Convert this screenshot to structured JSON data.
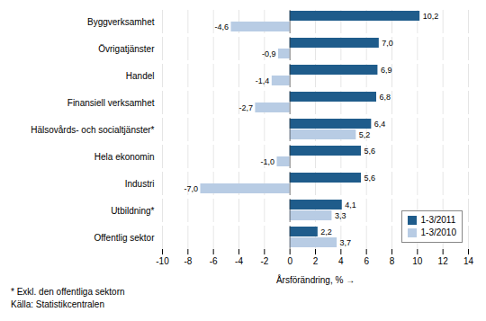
{
  "chart_data": {
    "type": "bar",
    "orientation": "horizontal",
    "categories": [
      "Byggverksamhet",
      "Övrigatjänster",
      "Handel",
      "Finansiell verksamhet",
      "Hälsovårds- och socialtjänster*",
      "Hela ekonomin",
      "Industri",
      "Utbildning*",
      "Offentlig sektor"
    ],
    "series": [
      {
        "name": "1-3/2011",
        "color": "#1F5C8B",
        "values": [
          10.2,
          7.0,
          6.9,
          6.8,
          6.4,
          5.6,
          5.6,
          4.1,
          2.2
        ],
        "value_labels": [
          "10,2",
          "7,0",
          "6,9",
          "6,8",
          "6,4",
          "5,6",
          "5,6",
          "4,1",
          "2,2"
        ]
      },
      {
        "name": "1-3/2010",
        "color": "#B8CCE4",
        "values": [
          -4.6,
          -0.9,
          -1.4,
          -2.7,
          5.2,
          -1.0,
          -7.0,
          3.3,
          3.7
        ],
        "value_labels": [
          "-4,6",
          "-0,9",
          "-1,4",
          "-2,7",
          "5,2",
          "-1,0",
          "-7,0",
          "3,3",
          "3,7"
        ]
      }
    ],
    "xlim": [
      -10,
      14
    ],
    "xticks": [
      -10,
      -8,
      -6,
      -4,
      -2,
      0,
      2,
      4,
      6,
      8,
      10,
      12,
      14
    ],
    "xlabel": "Årsförändring, %",
    "grid": true,
    "legend": "lower right",
    "data_labels": true,
    "annotations": [
      "* Exkl. den offentliga sektorn",
      "Källa: Statistikcentralen"
    ]
  }
}
